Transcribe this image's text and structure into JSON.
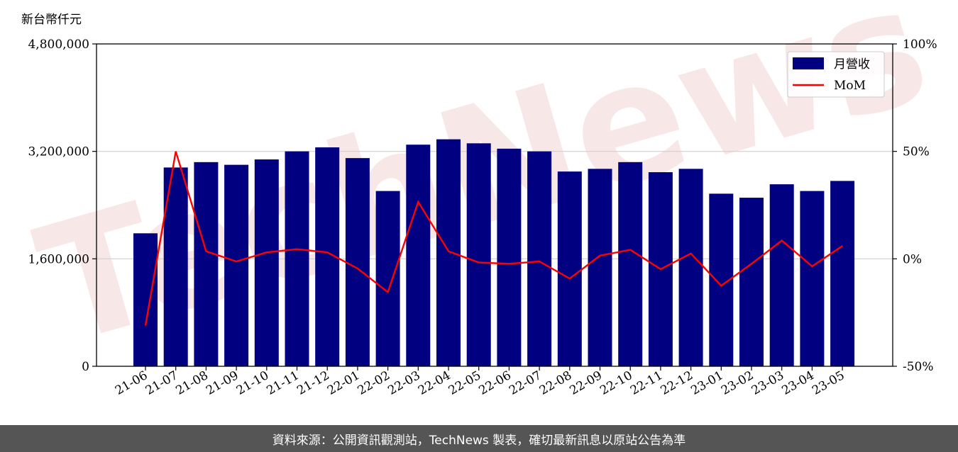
{
  "chart_data": {
    "type": "bar",
    "y_unit_label": "新台幣仟元",
    "categories": [
      "21-06",
      "21-07",
      "21-08",
      "21-09",
      "21-10",
      "21-11",
      "21-12",
      "22-01",
      "22-02",
      "22-03",
      "22-04",
      "22-05",
      "22-06",
      "22-07",
      "22-08",
      "22-09",
      "22-10",
      "22-11",
      "22-12",
      "23-01",
      "23-02",
      "23-03",
      "23-04",
      "23-05"
    ],
    "series": [
      {
        "name": "月營收",
        "type": "bar",
        "axis": "left",
        "color": "#000080",
        "values": [
          1980000,
          2960000,
          3040000,
          3000000,
          3080000,
          3200000,
          3260000,
          3100000,
          2610000,
          3300000,
          3380000,
          3320000,
          3240000,
          3200000,
          2900000,
          2940000,
          3040000,
          2890000,
          2940000,
          2570000,
          2510000,
          2710000,
          2610000,
          2760000
        ]
      },
      {
        "name": "MoM",
        "type": "line",
        "axis": "right",
        "color": "#ff0000",
        "values": [
          -31,
          50,
          3.5,
          -1.2,
          3,
          4.5,
          3,
          -4.5,
          -15.5,
          26.5,
          3.5,
          -1.7,
          -2.3,
          -1.2,
          -9.2,
          1.5,
          4.2,
          -4.8,
          2.5,
          -12.5,
          -2.3,
          8.5,
          -3.5,
          6
        ]
      }
    ],
    "ylim_left": [
      0,
      4800000
    ],
    "yticks_left": [
      "0",
      "1,600,000",
      "3,200,000",
      "4,800,000"
    ],
    "ylim_right": [
      -50,
      100
    ],
    "yticks_right": [
      "-50%",
      "0%",
      "50%",
      "100%"
    ],
    "grid": "horizontal",
    "legend_position": "top-right",
    "watermark": "TechNews",
    "source_note": "資料來源：公開資訊觀測站，TechNews 製表，確切最新訊息以原站公告為準"
  }
}
